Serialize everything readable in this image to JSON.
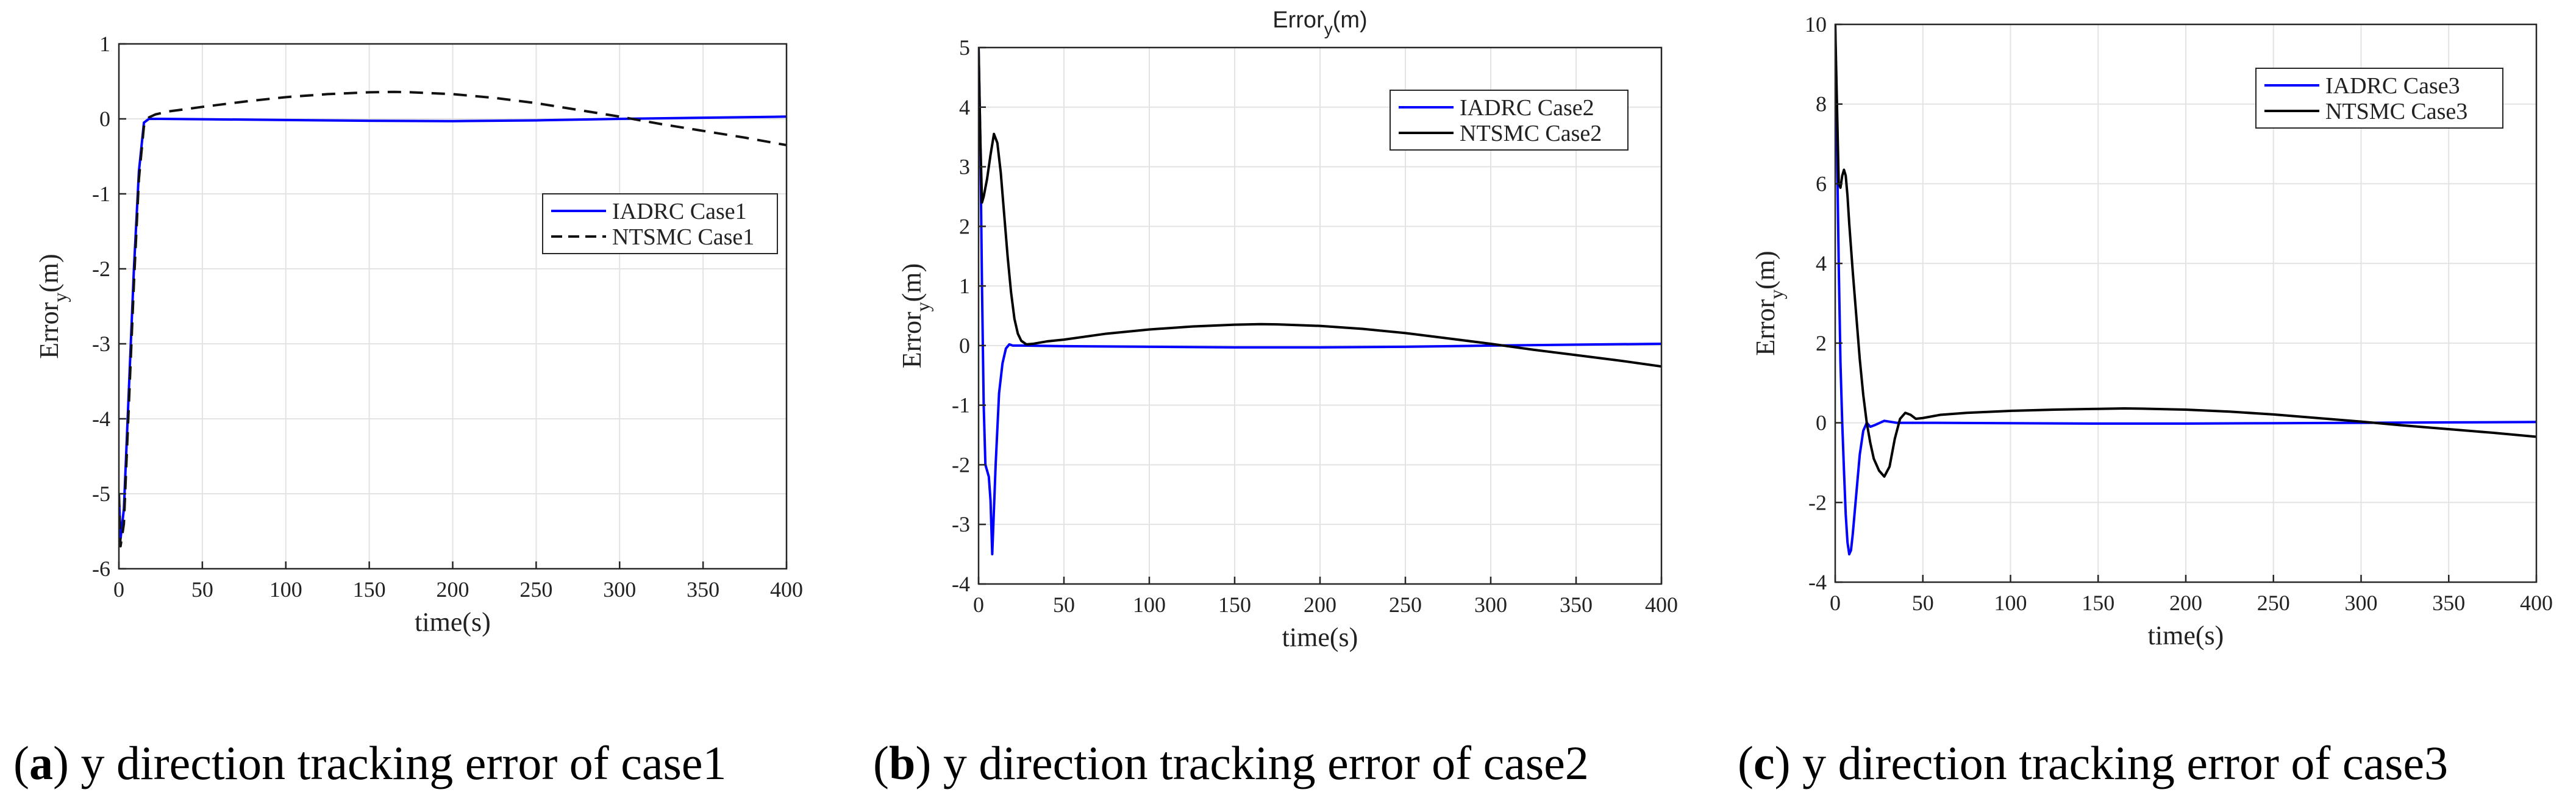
{
  "chart_data": [
    {
      "type": "line",
      "title": "",
      "xlabel": "time(s)",
      "ylabel": "Error_y(m)",
      "ylabel_main": "Error",
      "ylabel_sub": "y",
      "ylabel_tail": "(m)",
      "xlim": [
        0,
        400
      ],
      "ylim": [
        -6,
        1
      ],
      "xticks": [
        "0",
        "50",
        "100",
        "150",
        "200",
        "250",
        "300",
        "350",
        "400"
      ],
      "yticks": [
        "-6",
        "-5",
        "-4",
        "-3",
        "-2",
        "-1",
        "0",
        "1"
      ],
      "grid": true,
      "legend": "center-right",
      "caption_letter": "a",
      "caption_text": "y direction tracking error of case1",
      "series": [
        {
          "name": "IADRC Case1",
          "color": "#0000ff",
          "dash": "solid",
          "x": [
            0,
            1,
            3,
            6,
            9,
            12,
            15,
            18,
            25,
            50,
            100,
            150,
            200,
            250,
            300,
            350,
            400
          ],
          "y": [
            -5.0,
            -5.6,
            -5.2,
            -3.6,
            -2.0,
            -0.7,
            -0.05,
            0.0,
            0.0,
            -0.005,
            -0.015,
            -0.025,
            -0.03,
            -0.02,
            0.0,
            0.015,
            0.03
          ]
        },
        {
          "name": "NTSMC Case1",
          "color": "#111111",
          "dash": "dashed",
          "x": [
            0,
            1,
            3,
            6,
            9,
            12,
            15,
            18,
            22,
            30,
            50,
            75,
            100,
            125,
            150,
            165,
            175,
            200,
            225,
            250,
            275,
            300,
            325,
            350,
            375,
            400
          ],
          "y": [
            -5.0,
            -5.7,
            -5.4,
            -3.8,
            -2.2,
            -0.8,
            -0.1,
            0.02,
            0.06,
            0.1,
            0.16,
            0.23,
            0.29,
            0.33,
            0.355,
            0.36,
            0.355,
            0.33,
            0.28,
            0.21,
            0.12,
            0.03,
            -0.07,
            -0.16,
            -0.25,
            -0.35
          ]
        }
      ]
    },
    {
      "type": "line",
      "title": "Error_y(m)",
      "title_main": "Error",
      "title_sub": "y",
      "title_tail": "(m)",
      "xlabel": "time(s)",
      "ylabel": "Error_y(m)",
      "ylabel_main": "Error",
      "ylabel_sub": "y",
      "ylabel_tail": "(m)",
      "xlim": [
        0,
        400
      ],
      "ylim": [
        -4,
        5
      ],
      "xticks": [
        "0",
        "50",
        "100",
        "150",
        "200",
        "250",
        "300",
        "350",
        "400"
      ],
      "yticks": [
        "-4",
        "-3",
        "-2",
        "-1",
        "0",
        "1",
        "2",
        "3",
        "4",
        "5"
      ],
      "grid": true,
      "legend": "top-right",
      "caption_letter": "b",
      "caption_text": "y direction tracking error of case2",
      "series": [
        {
          "name": "IADRC Case2",
          "color": "#0000ff",
          "dash": "solid",
          "x": [
            0,
            1,
            2,
            3,
            4,
            6,
            7,
            8,
            10,
            12,
            14,
            16,
            18,
            20,
            25,
            50,
            100,
            150,
            200,
            250,
            300,
            350,
            400
          ],
          "y": [
            5.0,
            3.5,
            1.0,
            -1.0,
            -2.0,
            -2.2,
            -2.6,
            -3.5,
            -2.0,
            -0.8,
            -0.3,
            -0.05,
            0.02,
            0.0,
            0.0,
            -0.01,
            -0.02,
            -0.03,
            -0.03,
            -0.02,
            0.0,
            0.015,
            0.03
          ]
        },
        {
          "name": "NTSMC Case2",
          "color": "#000000",
          "dash": "solid",
          "x": [
            0,
            1,
            2,
            3,
            5,
            7,
            9,
            11,
            13,
            15,
            17,
            19,
            21,
            23,
            25,
            28,
            32,
            40,
            50,
            75,
            100,
            125,
            150,
            165,
            175,
            200,
            225,
            250,
            275,
            300,
            325,
            350,
            375,
            400
          ],
          "y": [
            5.0,
            3.5,
            2.4,
            2.5,
            2.8,
            3.2,
            3.55,
            3.4,
            2.9,
            2.2,
            1.5,
            0.9,
            0.45,
            0.2,
            0.08,
            0.02,
            0.03,
            0.07,
            0.1,
            0.2,
            0.27,
            0.32,
            0.35,
            0.36,
            0.355,
            0.33,
            0.28,
            0.21,
            0.12,
            0.03,
            -0.07,
            -0.16,
            -0.25,
            -0.35
          ]
        }
      ]
    },
    {
      "type": "line",
      "title": "",
      "xlabel": "time(s)",
      "ylabel": "Error_y(m)",
      "ylabel_main": "Error",
      "ylabel_sub": "y",
      "ylabel_tail": "(m)",
      "xlim": [
        0,
        400
      ],
      "ylim": [
        -4,
        10
      ],
      "xticks": [
        "0",
        "50",
        "100",
        "150",
        "200",
        "250",
        "300",
        "350",
        "400"
      ],
      "yticks": [
        "-4",
        "-2",
        "0",
        "2",
        "4",
        "6",
        "8",
        "10"
      ],
      "grid": true,
      "legend": "top-right",
      "caption_letter": "c",
      "caption_text": "y direction tracking error of case3",
      "series": [
        {
          "name": "IADRC Case3",
          "color": "#0000ff",
          "dash": "solid",
          "x": [
            0,
            1,
            2,
            3,
            4,
            5,
            6,
            7,
            8,
            9,
            10,
            12,
            14,
            16,
            18,
            20,
            23,
            28,
            35,
            50,
            100,
            150,
            200,
            250,
            300,
            350,
            400
          ],
          "y": [
            10.0,
            7.0,
            4.0,
            1.5,
            0.0,
            -1.2,
            -2.3,
            -3.0,
            -3.3,
            -3.2,
            -2.8,
            -1.8,
            -0.8,
            -0.2,
            0.0,
            -0.1,
            -0.05,
            0.05,
            0.0,
            0.0,
            -0.01,
            -0.02,
            -0.02,
            -0.01,
            0.0,
            0.01,
            0.02
          ]
        },
        {
          "name": "NTSMC Case3",
          "color": "#000000",
          "dash": "solid",
          "x": [
            0,
            1,
            2,
            3,
            4,
            5,
            6,
            7,
            8,
            10,
            12,
            14,
            16,
            18,
            20,
            22,
            25,
            28,
            31,
            34,
            37,
            40,
            43,
            46,
            50,
            60,
            75,
            100,
            125,
            150,
            165,
            175,
            200,
            225,
            250,
            275,
            300,
            325,
            350,
            375,
            400
          ],
          "y": [
            10.0,
            8.0,
            6.0,
            5.9,
            6.2,
            6.35,
            6.2,
            5.7,
            5.0,
            3.8,
            2.7,
            1.6,
            0.7,
            0.0,
            -0.5,
            -0.9,
            -1.2,
            -1.35,
            -1.1,
            -0.4,
            0.1,
            0.25,
            0.2,
            0.1,
            0.12,
            0.2,
            0.25,
            0.3,
            0.33,
            0.35,
            0.36,
            0.355,
            0.33,
            0.28,
            0.21,
            0.12,
            0.03,
            -0.07,
            -0.16,
            -0.25,
            -0.35
          ]
        }
      ]
    }
  ]
}
